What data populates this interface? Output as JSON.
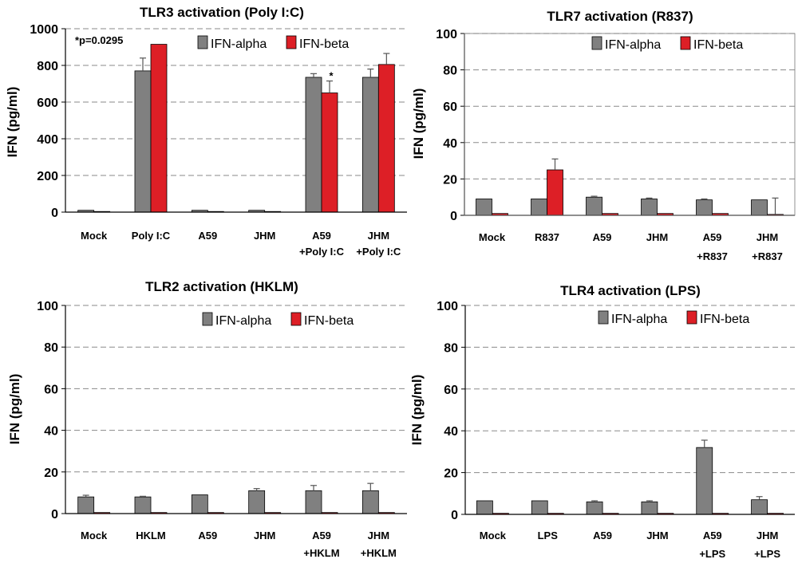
{
  "chart_data": [
    {
      "type": "bar",
      "title": "TLR3 activation (Poly I:C)",
      "ylabel": "IFN (pg/ml)",
      "xlabel": "",
      "ylim": [
        0,
        1000
      ],
      "yticks": [
        0,
        200,
        400,
        600,
        800,
        1000
      ],
      "categories": [
        [
          "Mock"
        ],
        [
          "Poly I:C"
        ],
        [
          "A59"
        ],
        [
          "JHM"
        ],
        [
          "A59",
          "+Poly I:C"
        ],
        [
          "JHM",
          "+Poly I:C"
        ]
      ],
      "series": [
        {
          "name": "IFN-alpha",
          "color": "#808080",
          "values": [
            10,
            770,
            10,
            10,
            735,
            735
          ],
          "errors": [
            0,
            70,
            0,
            0,
            20,
            45
          ]
        },
        {
          "name": "IFN-beta",
          "color": "#dd1f26",
          "values": [
            0,
            915,
            0,
            0,
            650,
            805
          ],
          "errors": [
            0,
            0,
            0,
            0,
            65,
            60
          ]
        }
      ],
      "annotations": [
        {
          "text": "*p=0.0295",
          "position": "top-left"
        },
        {
          "text": "*",
          "category_index": 4,
          "series": "IFN-beta"
        }
      ],
      "legend": {
        "position": "top-right"
      },
      "grid": true
    },
    {
      "type": "bar",
      "title": "TLR7 activation (R837)",
      "ylabel": "IFN (pg/ml)",
      "xlabel": "",
      "ylim": [
        0,
        100
      ],
      "yticks": [
        0,
        20,
        40,
        60,
        80,
        100
      ],
      "categories": [
        [
          "Mock"
        ],
        [
          "R837"
        ],
        [
          "A59"
        ],
        [
          "JHM"
        ],
        [
          "A59",
          "+R837"
        ],
        [
          "JHM",
          "+R837"
        ]
      ],
      "series": [
        {
          "name": "IFN-alpha",
          "color": "#808080",
          "values": [
            9,
            9,
            10,
            9,
            8.5,
            8.5
          ],
          "errors": [
            0,
            0,
            0.5,
            0.5,
            0.5,
            0
          ]
        },
        {
          "name": "IFN-beta",
          "color": "#dd1f26",
          "values": [
            1,
            25,
            1,
            1,
            1,
            0.5
          ],
          "errors": [
            0,
            6,
            0,
            0,
            0,
            9
          ]
        }
      ],
      "legend": {
        "position": "top-right"
      },
      "grid": true
    },
    {
      "type": "bar",
      "title": "TLR2 activation (HKLM)",
      "ylabel": "IFN (pg/ml)",
      "xlabel": "",
      "ylim": [
        0,
        100
      ],
      "yticks": [
        0,
        20,
        40,
        60,
        80,
        100
      ],
      "categories": [
        [
          "Mock"
        ],
        [
          "HKLM"
        ],
        [
          "A59"
        ],
        [
          "JHM"
        ],
        [
          "A59",
          "+HKLM"
        ],
        [
          "JHM",
          "+HKLM"
        ]
      ],
      "series": [
        {
          "name": "IFN-alpha",
          "color": "#808080",
          "values": [
            8,
            8,
            9,
            11,
            11,
            11
          ],
          "errors": [
            0.8,
            0.3,
            0,
            1,
            2.5,
            3.5
          ]
        },
        {
          "name": "IFN-beta",
          "color": "#dd1f26",
          "values": [
            0.5,
            0.5,
            0.5,
            0.5,
            0.5,
            0.5
          ],
          "errors": [
            0,
            0,
            0,
            0,
            0,
            0
          ]
        }
      ],
      "legend": {
        "position": "top-right"
      },
      "grid": true
    },
    {
      "type": "bar",
      "title": "TLR4 activation (LPS)",
      "ylabel": "IFN (pg/ml)",
      "xlabel": "",
      "ylim": [
        0,
        100
      ],
      "yticks": [
        0,
        20,
        40,
        60,
        80,
        100
      ],
      "categories": [
        [
          "Mock"
        ],
        [
          "LPS"
        ],
        [
          "A59"
        ],
        [
          "JHM"
        ],
        [
          "A59",
          "+LPS"
        ],
        [
          "JHM",
          "+LPS"
        ]
      ],
      "series": [
        {
          "name": "IFN-alpha",
          "color": "#808080",
          "values": [
            6.5,
            6.5,
            6,
            6,
            32,
            7
          ],
          "errors": [
            0,
            0,
            0.5,
            0.5,
            3.5,
            1.5
          ]
        },
        {
          "name": "IFN-beta",
          "color": "#dd1f26",
          "values": [
            0.5,
            0.5,
            0.5,
            0.5,
            0.5,
            0.5
          ],
          "errors": [
            0,
            0,
            0,
            0,
            0,
            0
          ]
        }
      ],
      "legend": {
        "position": "top-right"
      },
      "grid": true
    }
  ]
}
